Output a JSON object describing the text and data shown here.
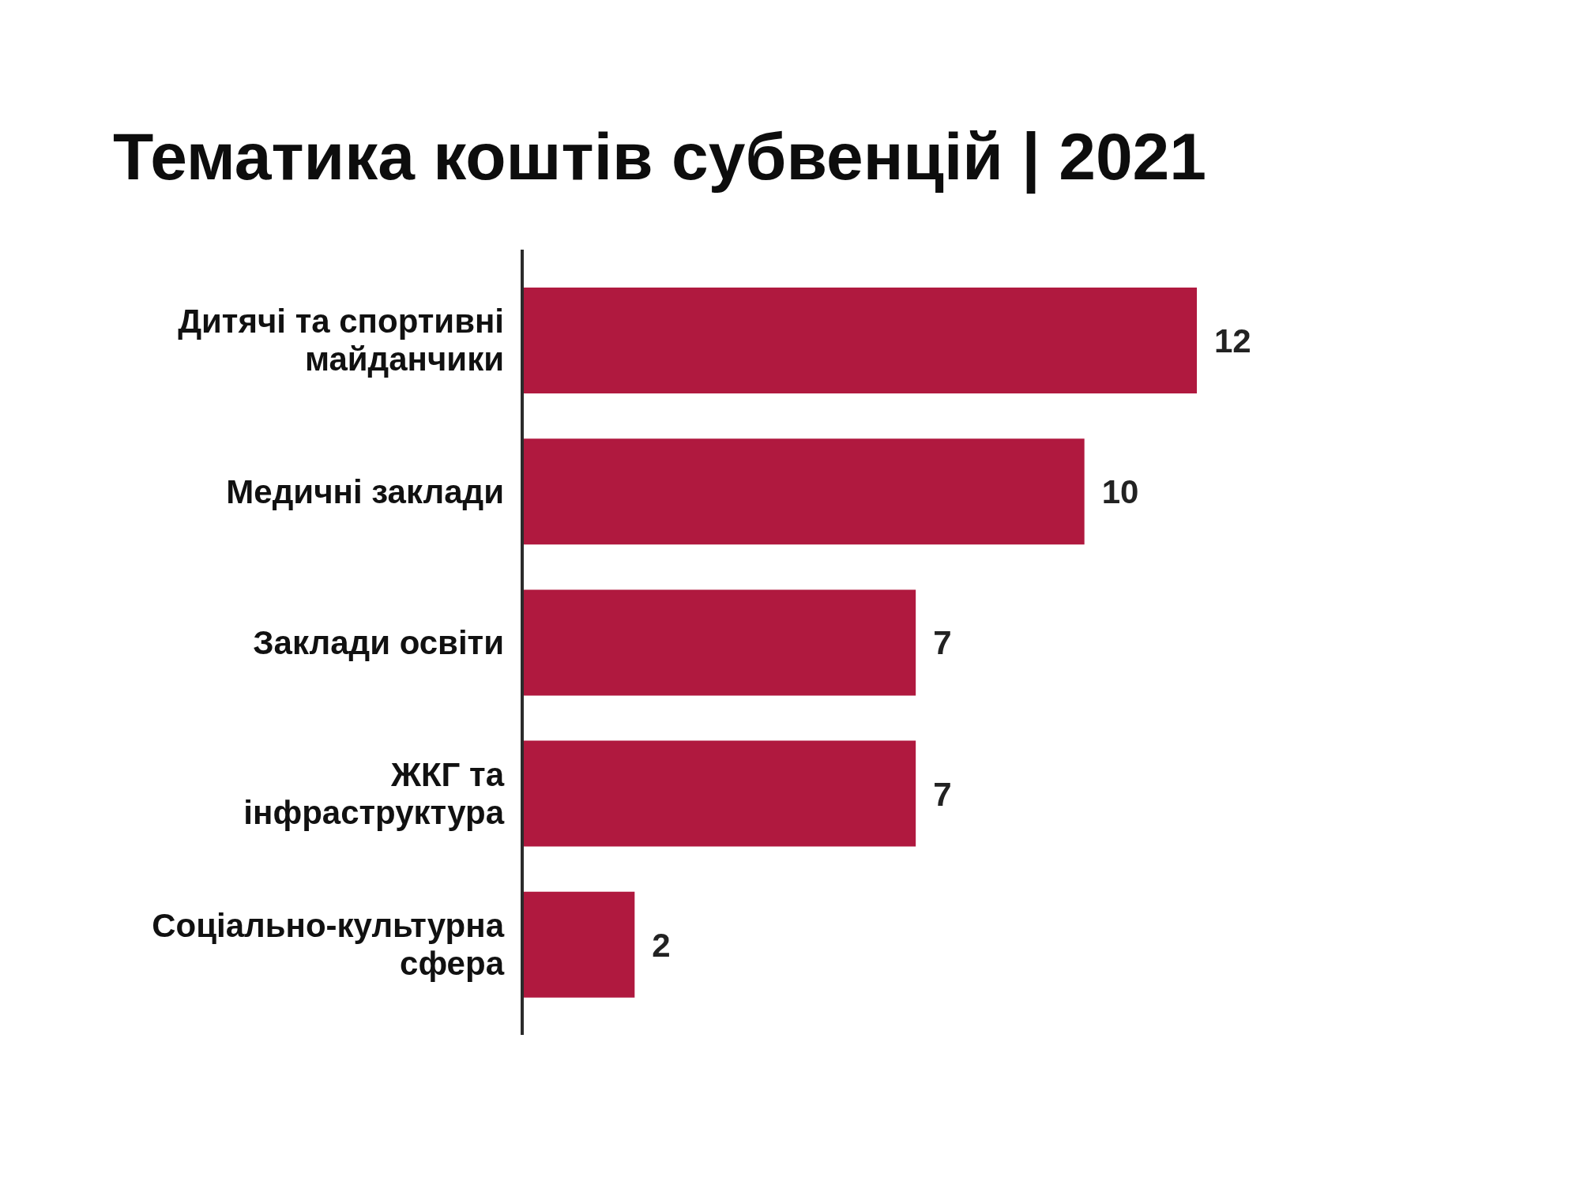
{
  "chart_data": {
    "type": "bar",
    "orientation": "horizontal",
    "title": "Тематика коштів субвенцій | 2021",
    "categories": [
      "Дитячі та спортивні майданчики",
      "Медичні заклади",
      "Заклади освіти",
      "ЖКГ та інфраструктура",
      "Соціально-культурна сфера"
    ],
    "values": [
      12,
      10,
      7,
      7,
      2
    ],
    "color": "#b0193f",
    "data_labels": true
  }
}
